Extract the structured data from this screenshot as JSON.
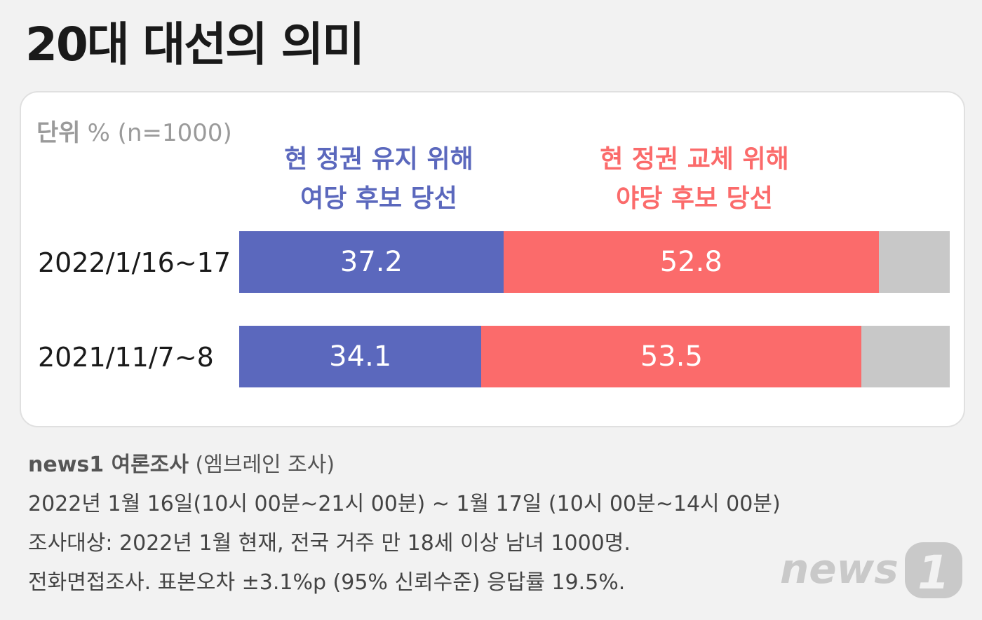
{
  "title": "20대 대선의 의미",
  "unit": {
    "label": "단위",
    "value": "% (n=1000)"
  },
  "colors": {
    "blue": "#5b68bd",
    "red": "#fb6b6b",
    "gray": "#c8c8c8",
    "logo": "#c9c9c9"
  },
  "chart_data": {
    "type": "bar",
    "orientation": "horizontal",
    "stacked": true,
    "percent": true,
    "categories": [
      "2022/1/16~17",
      "2021/11/7~8"
    ],
    "series": [
      {
        "name_lines": [
          "현 정권 유지 위해",
          "여당 후보 당선"
        ],
        "color": "#5b68bd",
        "values": [
          37.2,
          34.1
        ]
      },
      {
        "name_lines": [
          "현 정권 교체 위해",
          "야당 후보 당선"
        ],
        "color": "#fb6b6b",
        "values": [
          52.8,
          53.5
        ]
      }
    ],
    "remainder_color": "#c8c8c8",
    "total": 100
  },
  "footer": {
    "source_brand": "news1 여론조사",
    "source_note": "(엠브레인 조사)",
    "lines": [
      "2022년 1월 16일(10시 00분~21시 00분) ~ 1월 17일 (10시 00분~14시 00분)",
      "조사대상: 2022년 1월 현재, 전국 거주 만 18세 이상 남녀 1000명.",
      "전화면접조사. 표본오차 ±3.1%p (95% 신뢰수준) 응답률 19.5%."
    ]
  },
  "logo": {
    "text": "news",
    "number": "1"
  }
}
